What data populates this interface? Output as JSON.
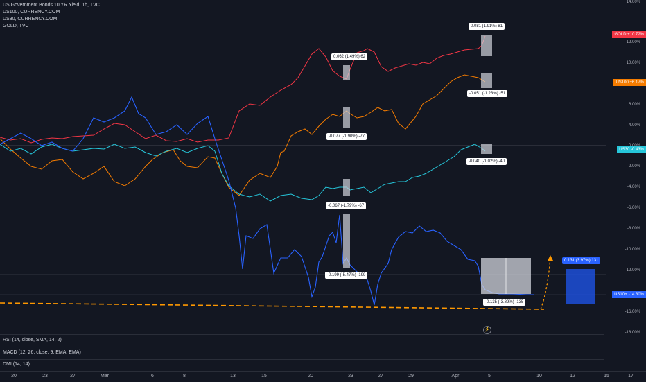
{
  "legend": {
    "main": "US Government Bonds 10 YR Yield, 1h, TVC",
    "s2": "US100, CURRENCY.COM",
    "s3": "US30, CURRENCY.COM",
    "s4": "GOLD, TVC"
  },
  "price_axis": [
    "14.00%",
    "12.00%",
    "10.00%",
    "8.00%",
    "6.00%",
    "4.00%",
    "2.00%",
    "0.00%",
    "-2.00%",
    "-4.00%",
    "-6.00%",
    "-8.00%",
    "-10.00%",
    "-12.00%",
    "-14.00%",
    "-16.00%",
    "-18.00%"
  ],
  "tags": {
    "gold": {
      "name": "GOLD",
      "value": "+10.72%",
      "color": "#f23645"
    },
    "us100": {
      "name": "US100",
      "value": "+6.17%",
      "color": "#f57c00"
    },
    "us30": {
      "name": "US30",
      "value": "-0.43%",
      "color": "#26c6da"
    },
    "us10y": {
      "name": "US10Y",
      "value": "-14.30%",
      "color": "#2962ff"
    }
  },
  "callouts": {
    "c1": "0.081 (1.91%) 81",
    "c2": "0.062 (1.49%) 62",
    "c3": "-0.051 (-1.23%) -51",
    "c4": "-0.077 (-1.90%) -77",
    "c5": "-0.040 (-1.02%) -40",
    "c6": "-0.067 (-1.79%) -67",
    "c7": "-0.199 (-5.47%) -199",
    "c8": "-0.135 (-3.89%) -135",
    "c9": "0.131 (3.97%) 131"
  },
  "indicators": {
    "rsi": "RSI (14, close, SMA, 14, 2)",
    "macd": "MACD (12, 26, close, 9, EMA, EMA)",
    "dmi": "DMI (14, 14)"
  },
  "dates": [
    "20",
    "23",
    "27",
    "Mar",
    "6",
    "8",
    "13",
    "15",
    "20",
    "23",
    "27",
    "29",
    "Apr",
    "5",
    "10",
    "12",
    "15",
    "17"
  ],
  "colors": {
    "bg": "#131722",
    "grid": "#2a2e39",
    "gold": "#f23645",
    "us100": "#f57c00",
    "us30": "#26c6da",
    "us10y": "#2962ff",
    "dash": "#ff9800"
  },
  "flash_icon": "lightning-icon"
}
